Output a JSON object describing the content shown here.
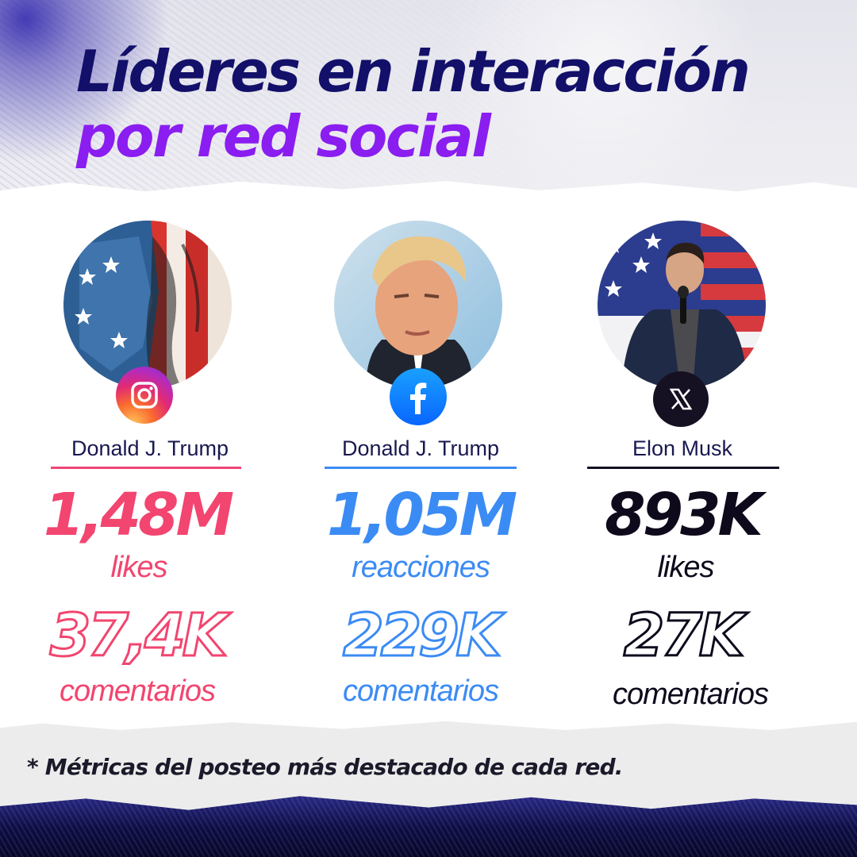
{
  "header": {
    "title_line1": "Líderes en interacción",
    "title_line2": "por red social"
  },
  "cards": [
    {
      "network_icon": "instagram-icon",
      "name": "Donald J. Trump",
      "primary_value": "1,48M",
      "primary_unit": "likes",
      "secondary_value": "37,4K",
      "secondary_unit": "comentarios",
      "accent_color": "#f2456f"
    },
    {
      "network_icon": "facebook-icon",
      "name": "Donald J. Trump",
      "primary_value": "1,05M",
      "primary_unit": "reacciones",
      "secondary_value": "229K",
      "secondary_unit": "comentarios",
      "accent_color": "#3b8bf4"
    },
    {
      "network_icon": "x-icon",
      "name": "Elon Musk",
      "primary_value": "893K",
      "primary_unit": "likes",
      "secondary_value": "27K",
      "secondary_unit": "comentarios",
      "accent_color": "#0e0a1c"
    }
  ],
  "footnote": "*  Métricas del posteo más destacado de cada red.",
  "colors": {
    "title_navy": "#13106a",
    "title_purple": "#8a1df0",
    "footer_navy": "#0d0d45"
  }
}
